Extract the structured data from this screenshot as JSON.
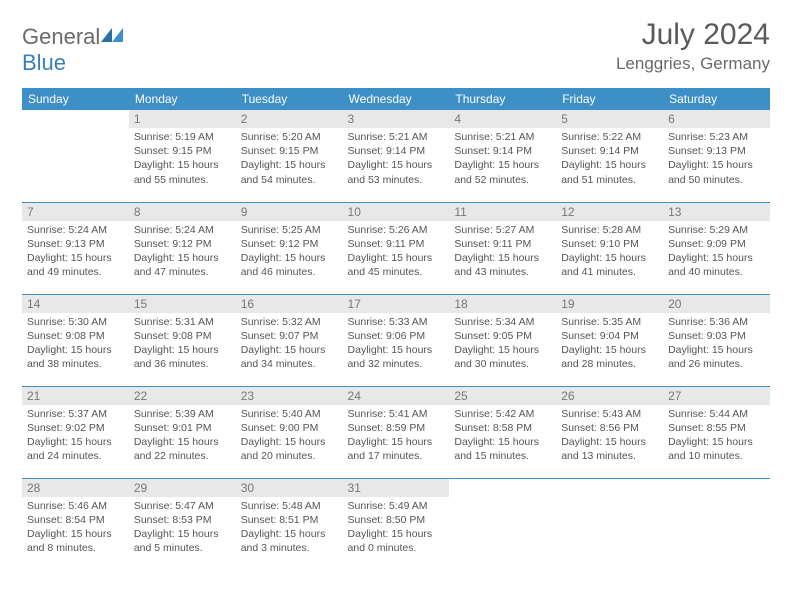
{
  "brand": {
    "part1": "General",
    "part2": "Blue"
  },
  "title": "July 2024",
  "location": "Lenggries, Germany",
  "colors": {
    "header_bg": "#3d8fc7",
    "header_text": "#ffffff",
    "border": "#3d8fc7",
    "daynum_bg": "#e8e8e8",
    "text": "#555555",
    "brand_gray": "#6a6a6a",
    "brand_blue": "#3b7fb8"
  },
  "day_headers": [
    "Sunday",
    "Monday",
    "Tuesday",
    "Wednesday",
    "Thursday",
    "Friday",
    "Saturday"
  ],
  "weeks": [
    [
      null,
      {
        "n": "1",
        "sr": "5:19 AM",
        "ss": "9:15 PM",
        "dl": "15 hours and 55 minutes."
      },
      {
        "n": "2",
        "sr": "5:20 AM",
        "ss": "9:15 PM",
        "dl": "15 hours and 54 minutes."
      },
      {
        "n": "3",
        "sr": "5:21 AM",
        "ss": "9:14 PM",
        "dl": "15 hours and 53 minutes."
      },
      {
        "n": "4",
        "sr": "5:21 AM",
        "ss": "9:14 PM",
        "dl": "15 hours and 52 minutes."
      },
      {
        "n": "5",
        "sr": "5:22 AM",
        "ss": "9:14 PM",
        "dl": "15 hours and 51 minutes."
      },
      {
        "n": "6",
        "sr": "5:23 AM",
        "ss": "9:13 PM",
        "dl": "15 hours and 50 minutes."
      }
    ],
    [
      {
        "n": "7",
        "sr": "5:24 AM",
        "ss": "9:13 PM",
        "dl": "15 hours and 49 minutes."
      },
      {
        "n": "8",
        "sr": "5:24 AM",
        "ss": "9:12 PM",
        "dl": "15 hours and 47 minutes."
      },
      {
        "n": "9",
        "sr": "5:25 AM",
        "ss": "9:12 PM",
        "dl": "15 hours and 46 minutes."
      },
      {
        "n": "10",
        "sr": "5:26 AM",
        "ss": "9:11 PM",
        "dl": "15 hours and 45 minutes."
      },
      {
        "n": "11",
        "sr": "5:27 AM",
        "ss": "9:11 PM",
        "dl": "15 hours and 43 minutes."
      },
      {
        "n": "12",
        "sr": "5:28 AM",
        "ss": "9:10 PM",
        "dl": "15 hours and 41 minutes."
      },
      {
        "n": "13",
        "sr": "5:29 AM",
        "ss": "9:09 PM",
        "dl": "15 hours and 40 minutes."
      }
    ],
    [
      {
        "n": "14",
        "sr": "5:30 AM",
        "ss": "9:08 PM",
        "dl": "15 hours and 38 minutes."
      },
      {
        "n": "15",
        "sr": "5:31 AM",
        "ss": "9:08 PM",
        "dl": "15 hours and 36 minutes."
      },
      {
        "n": "16",
        "sr": "5:32 AM",
        "ss": "9:07 PM",
        "dl": "15 hours and 34 minutes."
      },
      {
        "n": "17",
        "sr": "5:33 AM",
        "ss": "9:06 PM",
        "dl": "15 hours and 32 minutes."
      },
      {
        "n": "18",
        "sr": "5:34 AM",
        "ss": "9:05 PM",
        "dl": "15 hours and 30 minutes."
      },
      {
        "n": "19",
        "sr": "5:35 AM",
        "ss": "9:04 PM",
        "dl": "15 hours and 28 minutes."
      },
      {
        "n": "20",
        "sr": "5:36 AM",
        "ss": "9:03 PM",
        "dl": "15 hours and 26 minutes."
      }
    ],
    [
      {
        "n": "21",
        "sr": "5:37 AM",
        "ss": "9:02 PM",
        "dl": "15 hours and 24 minutes."
      },
      {
        "n": "22",
        "sr": "5:39 AM",
        "ss": "9:01 PM",
        "dl": "15 hours and 22 minutes."
      },
      {
        "n": "23",
        "sr": "5:40 AM",
        "ss": "9:00 PM",
        "dl": "15 hours and 20 minutes."
      },
      {
        "n": "24",
        "sr": "5:41 AM",
        "ss": "8:59 PM",
        "dl": "15 hours and 17 minutes."
      },
      {
        "n": "25",
        "sr": "5:42 AM",
        "ss": "8:58 PM",
        "dl": "15 hours and 15 minutes."
      },
      {
        "n": "26",
        "sr": "5:43 AM",
        "ss": "8:56 PM",
        "dl": "15 hours and 13 minutes."
      },
      {
        "n": "27",
        "sr": "5:44 AM",
        "ss": "8:55 PM",
        "dl": "15 hours and 10 minutes."
      }
    ],
    [
      {
        "n": "28",
        "sr": "5:46 AM",
        "ss": "8:54 PM",
        "dl": "15 hours and 8 minutes."
      },
      {
        "n": "29",
        "sr": "5:47 AM",
        "ss": "8:53 PM",
        "dl": "15 hours and 5 minutes."
      },
      {
        "n": "30",
        "sr": "5:48 AM",
        "ss": "8:51 PM",
        "dl": "15 hours and 3 minutes."
      },
      {
        "n": "31",
        "sr": "5:49 AM",
        "ss": "8:50 PM",
        "dl": "15 hours and 0 minutes."
      },
      null,
      null,
      null
    ]
  ],
  "labels": {
    "sunrise": "Sunrise:",
    "sunset": "Sunset:",
    "daylight": "Daylight:"
  }
}
